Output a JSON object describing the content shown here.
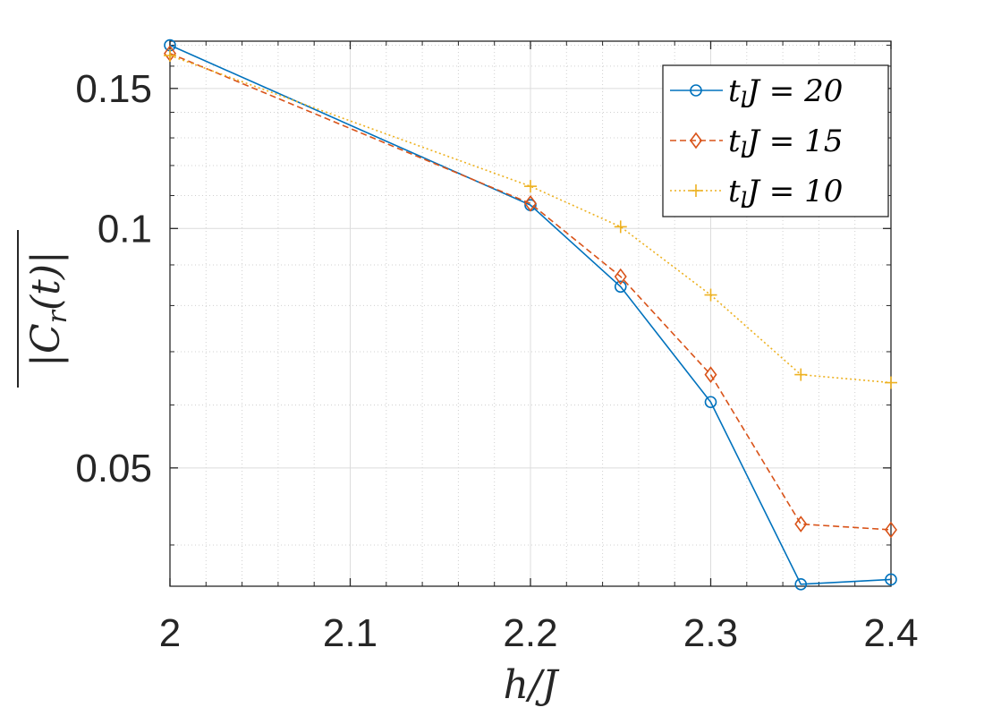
{
  "chart_data": {
    "type": "line",
    "xlabel": "h/J",
    "ylabel": "|C_r(t)| (overlined)",
    "y_scale": "log",
    "xlim": [
      2.0,
      2.4
    ],
    "ylim": [
      0.0355,
      0.172
    ],
    "x_ticks": [
      2.0,
      2.1,
      2.2,
      2.3,
      2.4
    ],
    "x_tick_labels": [
      "2",
      "2.1",
      "2.2",
      "2.3",
      "2.4"
    ],
    "y_ticks": [
      0.05,
      0.1,
      0.15
    ],
    "y_tick_labels": [
      "0.05",
      "0.1",
      "0.15"
    ],
    "grid": true,
    "legend_position": "top-right",
    "x": [
      2.0,
      2.2,
      2.25,
      2.3,
      2.35,
      2.4
    ],
    "series": [
      {
        "name": "t_l J = 20",
        "legend_main": "t",
        "legend_sub": "l",
        "legend_rest": "J = 20",
        "color": "#0072BD",
        "marker": "circle",
        "linestyle": "solid",
        "values": [
          0.17,
          0.107,
          0.0845,
          0.0605,
          0.0357,
          0.0362
        ]
      },
      {
        "name": "t_l J = 15",
        "legend_main": "t",
        "legend_sub": "l",
        "legend_rest": "J = 15",
        "color": "#D95319",
        "marker": "diamond",
        "linestyle": "dashed",
        "values": [
          0.166,
          0.1075,
          0.087,
          0.0655,
          0.0425,
          0.0418
        ]
      },
      {
        "name": "t_l J = 10",
        "legend_main": "t",
        "legend_sub": "l",
        "legend_rest": "J = 10",
        "color": "#EDB120",
        "marker": "plus",
        "linestyle": "dotted",
        "values": [
          0.165,
          0.113,
          0.1005,
          0.0825,
          0.0655,
          0.064
        ]
      }
    ]
  }
}
